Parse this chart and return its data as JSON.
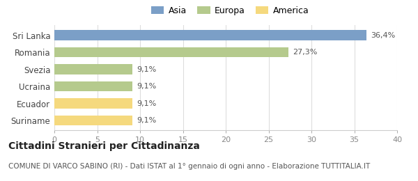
{
  "categories": [
    "Suriname",
    "Ecuador",
    "Ucraina",
    "Svezia",
    "Romania",
    "Sri Lanka"
  ],
  "values": [
    9.1,
    9.1,
    9.1,
    9.1,
    27.3,
    36.4
  ],
  "labels": [
    "9,1%",
    "9,1%",
    "9,1%",
    "9,1%",
    "27,3%",
    "36,4%"
  ],
  "colors": [
    "#f5d97e",
    "#f5d97e",
    "#b5ca8d",
    "#b5ca8d",
    "#b5ca8d",
    "#7b9fc7"
  ],
  "legend_items": [
    {
      "label": "Asia",
      "color": "#7b9fc7"
    },
    {
      "label": "Europa",
      "color": "#b5ca8d"
    },
    {
      "label": "America",
      "color": "#f5d97e"
    }
  ],
  "xlim": [
    0,
    40
  ],
  "xticks": [
    0,
    5,
    10,
    15,
    20,
    25,
    30,
    35,
    40
  ],
  "title": "Cittadini Stranieri per Cittadinanza",
  "subtitle": "COMUNE DI VARCO SABINO (RI) - Dati ISTAT al 1° gennaio di ogni anno - Elaborazione TUTTITALIA.IT",
  "background_color": "#ffffff",
  "title_fontsize": 10,
  "subtitle_fontsize": 7.5,
  "bar_height": 0.6
}
